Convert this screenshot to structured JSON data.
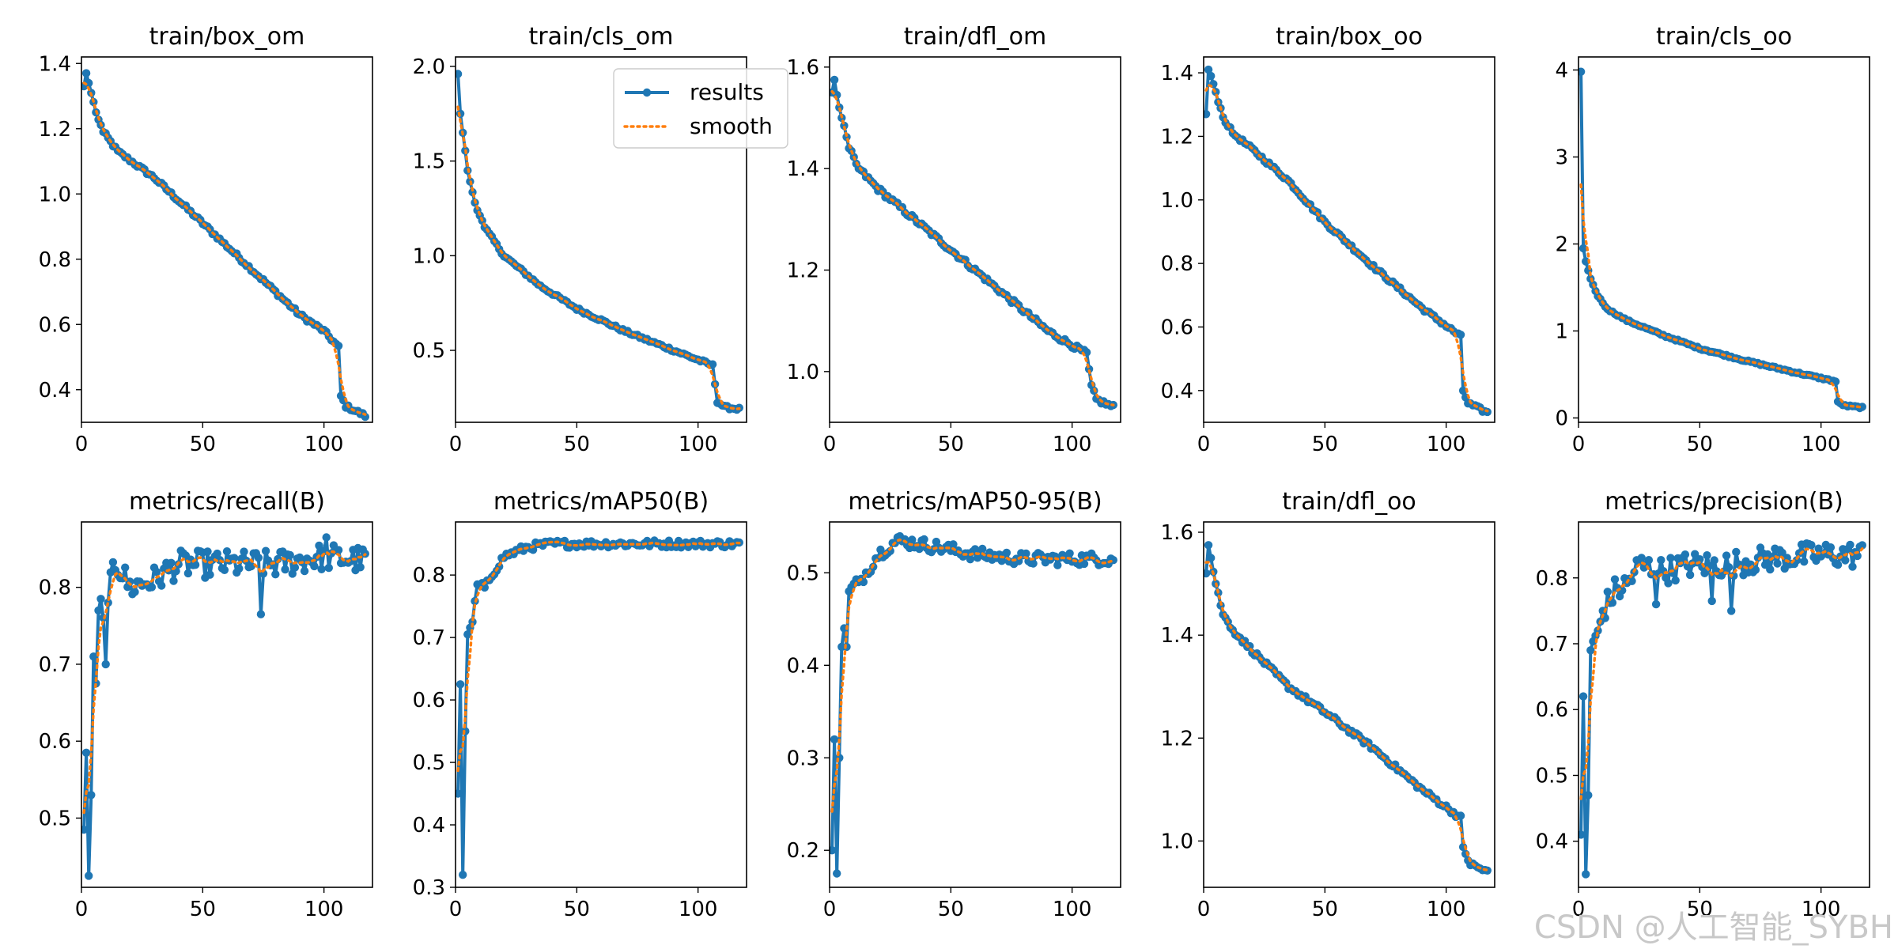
{
  "figure": {
    "watermark": "CSDN @人工智能_SYBH"
  },
  "colors": {
    "results": "#1f77b4",
    "smooth": "#ff7f0e",
    "axis": "#000000"
  },
  "legend": {
    "results_label": "results",
    "smooth_label": "smooth"
  },
  "chart_data": [
    {
      "type": "line",
      "title": "train/box_om",
      "xlabel": "",
      "ylabel": "",
      "xlim": [
        0,
        120
      ],
      "ylim": [
        0.3,
        1.42
      ],
      "xticks": [
        0,
        50,
        100
      ],
      "xtick_labels": [
        "0",
        "50",
        "100"
      ],
      "yticks": [
        0.4,
        0.6,
        0.8,
        1.0,
        1.2,
        1.4
      ],
      "ytick_labels": [
        "0.4",
        "0.6",
        "0.8",
        "1.0",
        "1.2",
        "1.4"
      ],
      "x_end": 117,
      "series_keypoints": [
        [
          1,
          1.33
        ],
        [
          2,
          1.37
        ],
        [
          3,
          1.34
        ],
        [
          4,
          1.31
        ],
        [
          6,
          1.25
        ],
        [
          9,
          1.19
        ],
        [
          15,
          1.13
        ],
        [
          30,
          1.05
        ],
        [
          50,
          0.91
        ],
        [
          70,
          0.77
        ],
        [
          90,
          0.63
        ],
        [
          100,
          0.58
        ],
        [
          106,
          0.53
        ],
        [
          107,
          0.38
        ],
        [
          109,
          0.35
        ],
        [
          117,
          0.32
        ]
      ],
      "noise": 0.006,
      "spikes": []
    },
    {
      "type": "line",
      "title": "train/cls_om",
      "xlabel": "",
      "ylabel": "",
      "xlim": [
        0,
        120
      ],
      "ylim": [
        0.12,
        2.05
      ],
      "xticks": [
        0,
        50,
        100
      ],
      "xtick_labels": [
        "0",
        "50",
        "100"
      ],
      "yticks": [
        0.5,
        1.0,
        1.5,
        2.0
      ],
      "ytick_labels": [
        "0.5",
        "1.0",
        "1.5",
        "2.0"
      ],
      "x_end": 117,
      "series_keypoints": [
        [
          1,
          1.96
        ],
        [
          2,
          1.75
        ],
        [
          3,
          1.65
        ],
        [
          5,
          1.45
        ],
        [
          8,
          1.28
        ],
        [
          12,
          1.15
        ],
        [
          20,
          1.0
        ],
        [
          35,
          0.84
        ],
        [
          50,
          0.72
        ],
        [
          70,
          0.6
        ],
        [
          90,
          0.5
        ],
        [
          106,
          0.42
        ],
        [
          108,
          0.23
        ],
        [
          111,
          0.2
        ],
        [
          117,
          0.19
        ]
      ],
      "noise": 0.008,
      "spikes": []
    },
    {
      "type": "line",
      "title": "train/dfl_om",
      "xlabel": "",
      "ylabel": "",
      "xlim": [
        0,
        120
      ],
      "ylim": [
        0.9,
        1.62
      ],
      "xticks": [
        0,
        50,
        100
      ],
      "xtick_labels": [
        "0",
        "50",
        "100"
      ],
      "yticks": [
        1.0,
        1.2,
        1.4,
        1.6
      ],
      "ytick_labels": [
        "1.0",
        "1.2",
        "1.4",
        "1.6"
      ],
      "x_end": 117,
      "series_keypoints": [
        [
          1,
          1.55
        ],
        [
          2,
          1.575
        ],
        [
          3,
          1.545
        ],
        [
          5,
          1.5
        ],
        [
          8,
          1.44
        ],
        [
          12,
          1.4
        ],
        [
          20,
          1.36
        ],
        [
          35,
          1.3
        ],
        [
          50,
          1.24
        ],
        [
          70,
          1.16
        ],
        [
          90,
          1.08
        ],
        [
          106,
          1.035
        ],
        [
          108,
          0.97
        ],
        [
          110,
          0.945
        ],
        [
          117,
          0.93
        ]
      ],
      "noise": 0.005,
      "spikes": []
    },
    {
      "type": "line",
      "title": "train/box_oo",
      "xlabel": "",
      "ylabel": "",
      "xlim": [
        0,
        120
      ],
      "ylim": [
        0.3,
        1.45
      ],
      "xticks": [
        0,
        50,
        100
      ],
      "xtick_labels": [
        "0",
        "50",
        "100"
      ],
      "yticks": [
        0.4,
        0.6,
        0.8,
        1.0,
        1.2,
        1.4
      ],
      "ytick_labels": [
        "0.4",
        "0.6",
        "0.8",
        "1.0",
        "1.2",
        "1.4"
      ],
      "x_end": 117,
      "series_keypoints": [
        [
          1,
          1.27
        ],
        [
          2,
          1.41
        ],
        [
          3,
          1.39
        ],
        [
          5,
          1.34
        ],
        [
          8,
          1.26
        ],
        [
          12,
          1.21
        ],
        [
          20,
          1.16
        ],
        [
          35,
          1.06
        ],
        [
          50,
          0.93
        ],
        [
          70,
          0.79
        ],
        [
          90,
          0.66
        ],
        [
          106,
          0.57
        ],
        [
          107,
          0.4
        ],
        [
          109,
          0.36
        ],
        [
          117,
          0.33
        ]
      ],
      "noise": 0.006,
      "spikes": []
    },
    {
      "type": "line",
      "title": "train/cls_oo",
      "xlabel": "",
      "ylabel": "",
      "xlim": [
        0,
        120
      ],
      "ylim": [
        -0.05,
        4.15
      ],
      "xticks": [
        0,
        50,
        100
      ],
      "xtick_labels": [
        "0",
        "50",
        "100"
      ],
      "yticks": [
        0,
        1,
        2,
        3,
        4
      ],
      "ytick_labels": [
        "0",
        "1",
        "2",
        "3",
        "4"
      ],
      "x_end": 117,
      "series_keypoints": [
        [
          1,
          3.98
        ],
        [
          2,
          1.95
        ],
        [
          3,
          1.8
        ],
        [
          5,
          1.6
        ],
        [
          8,
          1.4
        ],
        [
          12,
          1.25
        ],
        [
          20,
          1.12
        ],
        [
          35,
          0.95
        ],
        [
          50,
          0.8
        ],
        [
          70,
          0.65
        ],
        [
          90,
          0.52
        ],
        [
          106,
          0.42
        ],
        [
          107,
          0.18
        ],
        [
          110,
          0.14
        ],
        [
          117,
          0.12
        ]
      ],
      "noise": 0.01,
      "spikes": []
    },
    {
      "type": "line",
      "title": "metrics/recall(B)",
      "xlabel": "",
      "ylabel": "",
      "xlim": [
        0,
        120
      ],
      "ylim": [
        0.41,
        0.885
      ],
      "xticks": [
        0,
        50,
        100
      ],
      "xtick_labels": [
        "0",
        "50",
        "100"
      ],
      "yticks": [
        0.5,
        0.6,
        0.7,
        0.8
      ],
      "ytick_labels": [
        "0.5",
        "0.6",
        "0.7",
        "0.8"
      ],
      "x_end": 117,
      "series_keypoints": [
        [
          1,
          0.485
        ],
        [
          2,
          0.585
        ],
        [
          3,
          0.425
        ],
        [
          4,
          0.53
        ],
        [
          5,
          0.71
        ],
        [
          6,
          0.675
        ],
        [
          7,
          0.77
        ],
        [
          8,
          0.785
        ],
        [
          10,
          0.7
        ],
        [
          11,
          0.78
        ],
        [
          13,
          0.84
        ],
        [
          20,
          0.8
        ],
        [
          30,
          0.81
        ],
        [
          40,
          0.83
        ],
        [
          60,
          0.83
        ],
        [
          80,
          0.83
        ],
        [
          100,
          0.84
        ],
        [
          117,
          0.835
        ]
      ],
      "noise": 0.018,
      "spikes": [
        [
          74,
          0.765
        ],
        [
          101,
          0.865
        ]
      ]
    },
    {
      "type": "line",
      "title": "metrics/mAP50(B)",
      "xlabel": "",
      "ylabel": "",
      "xlim": [
        0,
        120
      ],
      "ylim": [
        0.3,
        0.885
      ],
      "xticks": [
        0,
        50,
        100
      ],
      "xtick_labels": [
        "0",
        "50",
        "100"
      ],
      "yticks": [
        0.3,
        0.4,
        0.5,
        0.6,
        0.7,
        0.8
      ],
      "ytick_labels": [
        "0.3",
        "0.4",
        "0.5",
        "0.6",
        "0.7",
        "0.8"
      ],
      "x_end": 117,
      "series_keypoints": [
        [
          1,
          0.45
        ],
        [
          2,
          0.625
        ],
        [
          3,
          0.32
        ],
        [
          4,
          0.55
        ],
        [
          5,
          0.705
        ],
        [
          7,
          0.725
        ],
        [
          9,
          0.785
        ],
        [
          12,
          0.78
        ],
        [
          15,
          0.8
        ],
        [
          20,
          0.83
        ],
        [
          30,
          0.845
        ],
        [
          40,
          0.85
        ],
        [
          60,
          0.85
        ],
        [
          80,
          0.85
        ],
        [
          100,
          0.85
        ],
        [
          117,
          0.85
        ]
      ],
      "noise": 0.006,
      "spikes": []
    },
    {
      "type": "line",
      "title": "metrics/mAP50-95(B)",
      "xlabel": "",
      "ylabel": "",
      "xlim": [
        0,
        120
      ],
      "ylim": [
        0.16,
        0.555
      ],
      "xticks": [
        0,
        50,
        100
      ],
      "xtick_labels": [
        "0",
        "50",
        "100"
      ],
      "yticks": [
        0.2,
        0.3,
        0.4,
        0.5
      ],
      "ytick_labels": [
        "0.2",
        "0.3",
        "0.4",
        "0.5"
      ],
      "x_end": 117,
      "series_keypoints": [
        [
          1,
          0.2
        ],
        [
          2,
          0.32
        ],
        [
          3,
          0.175
        ],
        [
          4,
          0.3
        ],
        [
          5,
          0.42
        ],
        [
          6,
          0.44
        ],
        [
          7,
          0.42
        ],
        [
          8,
          0.48
        ],
        [
          12,
          0.49
        ],
        [
          15,
          0.5
        ],
        [
          20,
          0.52
        ],
        [
          28,
          0.535
        ],
        [
          40,
          0.53
        ],
        [
          60,
          0.52
        ],
        [
          80,
          0.515
        ],
        [
          100,
          0.515
        ],
        [
          117,
          0.515
        ]
      ],
      "noise": 0.007,
      "spikes": []
    },
    {
      "type": "line",
      "title": "train/dfl_oo",
      "xlabel": "",
      "ylabel": "",
      "xlim": [
        0,
        120
      ],
      "ylim": [
        0.91,
        1.62
      ],
      "xticks": [
        0,
        50,
        100
      ],
      "xtick_labels": [
        "0",
        "50",
        "100"
      ],
      "yticks": [
        1.0,
        1.2,
        1.4,
        1.6
      ],
      "ytick_labels": [
        "1.0",
        "1.2",
        "1.4",
        "1.6"
      ],
      "x_end": 117,
      "series_keypoints": [
        [
          1,
          1.52
        ],
        [
          2,
          1.575
        ],
        [
          3,
          1.55
        ],
        [
          5,
          1.5
        ],
        [
          8,
          1.44
        ],
        [
          12,
          1.41
        ],
        [
          20,
          1.37
        ],
        [
          35,
          1.3
        ],
        [
          50,
          1.25
        ],
        [
          70,
          1.18
        ],
        [
          90,
          1.1
        ],
        [
          106,
          1.045
        ],
        [
          107,
          0.985
        ],
        [
          110,
          0.955
        ],
        [
          117,
          0.94
        ]
      ],
      "noise": 0.005,
      "spikes": []
    },
    {
      "type": "line",
      "title": "metrics/precision(B)",
      "xlabel": "",
      "ylabel": "",
      "xlim": [
        0,
        120
      ],
      "ylim": [
        0.33,
        0.885
      ],
      "xticks": [
        0,
        50,
        100
      ],
      "xtick_labels": [
        "0",
        "50",
        "100"
      ],
      "yticks": [
        0.4,
        0.5,
        0.6,
        0.7,
        0.8
      ],
      "ytick_labels": [
        "0.4",
        "0.5",
        "0.6",
        "0.7",
        "0.8"
      ],
      "x_end": 117,
      "series_keypoints": [
        [
          1,
          0.41
        ],
        [
          2,
          0.62
        ],
        [
          3,
          0.35
        ],
        [
          4,
          0.47
        ],
        [
          5,
          0.69
        ],
        [
          8,
          0.72
        ],
        [
          10,
          0.75
        ],
        [
          15,
          0.78
        ],
        [
          20,
          0.79
        ],
        [
          25,
          0.82
        ],
        [
          35,
          0.81
        ],
        [
          45,
          0.82
        ],
        [
          60,
          0.82
        ],
        [
          80,
          0.83
        ],
        [
          100,
          0.835
        ],
        [
          117,
          0.835
        ]
      ],
      "noise": 0.02,
      "spikes": [
        [
          32,
          0.76
        ],
        [
          55,
          0.765
        ],
        [
          63,
          0.75
        ]
      ]
    }
  ]
}
